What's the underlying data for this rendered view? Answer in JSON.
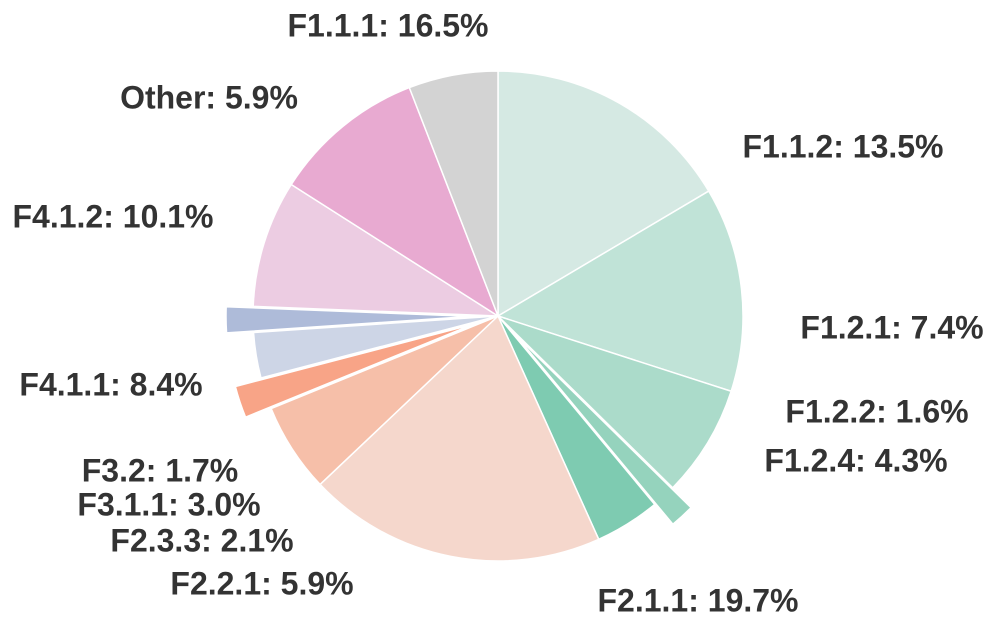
{
  "chart_data": {
    "type": "pie",
    "title": "",
    "start_angle_deg": 90,
    "direction": "clockwise",
    "slices": [
      {
        "label": "F1.1.1",
        "value": 16.5,
        "text": "F1.1.1: 16.5%",
        "color": "#d5e9e3",
        "explode": false
      },
      {
        "label": "F1.1.2",
        "value": 13.5,
        "text": "F1.1.2: 13.5%",
        "color": "#c0e3d7",
        "explode": false
      },
      {
        "label": "F1.2.1",
        "value": 7.4,
        "text": "F1.2.1: 7.4%",
        "color": "#abdbca",
        "explode": false
      },
      {
        "label": "F1.2.2",
        "value": 1.6,
        "text": "F1.2.2: 1.6%",
        "color": "#95d3bd",
        "explode": true
      },
      {
        "label": "F1.2.4",
        "value": 4.3,
        "text": "F1.2.4: 4.3%",
        "color": "#7ecbb1",
        "explode": false
      },
      {
        "label": "F2.1.1",
        "value": 19.7,
        "text": "F2.1.1: 19.7%",
        "color": "#f5d7cc",
        "explode": false
      },
      {
        "label": "F2.2.1",
        "value": 5.9,
        "text": "F2.2.1: 5.9%",
        "color": "#f6bfa9",
        "explode": false
      },
      {
        "label": "F2.3.3",
        "value": 2.1,
        "text": "F2.3.3: 2.1%",
        "color": "#f8a487",
        "explode": true
      },
      {
        "label": "F3.1.1",
        "value": 3.0,
        "text": "F3.1.1: 3.0%",
        "color": "#cdd5e6",
        "explode": false
      },
      {
        "label": "F3.2",
        "value": 1.7,
        "text": "F3.2: 1.7%",
        "color": "#aebbd9",
        "explode": true
      },
      {
        "label": "F4.1.1",
        "value": 8.4,
        "text": "F4.1.1: 8.4%",
        "color": "#eccce2",
        "explode": false
      },
      {
        "label": "F4.1.2",
        "value": 10.1,
        "text": "F4.1.2: 10.1%",
        "color": "#e8aad1",
        "explode": false
      },
      {
        "label": "Other",
        "value": 5.9,
        "text": "Other: 5.9%",
        "color": "#d3d3d3",
        "explode": false
      }
    ]
  }
}
